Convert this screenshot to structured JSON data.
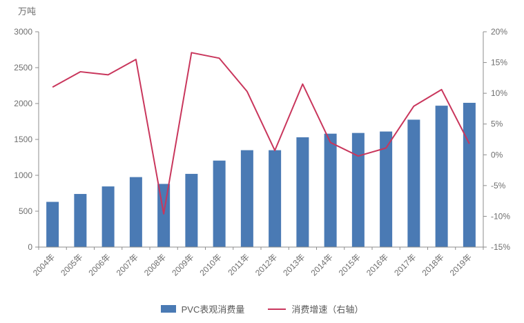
{
  "chart_data": {
    "type": "combo_bar_line",
    "title": "",
    "categories": [
      "2004年",
      "2005年",
      "2006年",
      "2007年",
      "2008年",
      "2009年",
      "2010年",
      "2011年",
      "2012年",
      "2013年",
      "2014年",
      "2015年",
      "2016年",
      "2017年",
      "2018年",
      "2019年"
    ],
    "series": [
      {
        "name": "PVC表观消费量",
        "chart_type": "bar",
        "axis": "left",
        "color": "#4A7AB4",
        "values": [
          630,
          740,
          845,
          975,
          880,
          1020,
          1205,
          1350,
          1350,
          1530,
          1580,
          1590,
          1610,
          1775,
          1970,
          2010
        ]
      },
      {
        "name": "消费增速（右轴）",
        "chart_type": "line",
        "axis": "right",
        "color": "#C9365C",
        "values": [
          11.0,
          13.5,
          13.0,
          15.5,
          -9.6,
          16.6,
          15.7,
          10.3,
          0.7,
          11.5,
          2.0,
          -0.2,
          1.1,
          7.9,
          10.6,
          1.8
        ]
      }
    ],
    "left_axis": {
      "unit": "万吨",
      "ylim": [
        0,
        3000
      ],
      "tick_values": [
        0,
        500,
        1000,
        1500,
        2000,
        2500,
        3000
      ],
      "tick_labels": [
        "0",
        "500",
        "1000",
        "1500",
        "2000",
        "2500",
        "3000"
      ]
    },
    "right_axis": {
      "ylim": [
        -15,
        20
      ],
      "tick_values": [
        -15,
        -10,
        -5,
        0,
        5,
        10,
        15,
        20
      ],
      "tick_labels": [
        "-15%",
        "-10%",
        "-5%",
        "0%",
        "5%",
        "10%",
        "15%",
        "20%"
      ]
    },
    "grid": false,
    "legend_position": "bottom"
  },
  "legend": {
    "bar_label": "PVC表观消费量",
    "line_label": "消费增速（右轴）"
  },
  "colors": {
    "bar": "#4A7AB4",
    "line": "#C9365C",
    "axis": "#8C8C8C",
    "text": "#6E6E6E"
  }
}
